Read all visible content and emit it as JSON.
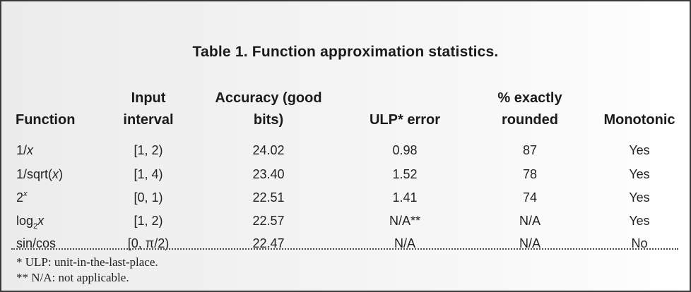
{
  "table": {
    "title": "Table 1. Function approximation statistics.",
    "headers": {
      "function": "Function",
      "interval_top": "Input",
      "interval_bottom": "interval",
      "accuracy_top": "Accuracy (good",
      "accuracy_bottom": "bits)",
      "ulp": "ULP* error",
      "exact_top": "% exactly",
      "exact_bottom": "rounded",
      "monotonic": "Monotonic"
    },
    "rows": [
      {
        "fn_base": "1/",
        "fn_var": "x",
        "interval": "[1, 2)",
        "accuracy": "24.02",
        "ulp": "0.98",
        "exact": "87",
        "monotonic": "Yes"
      },
      {
        "fn_base": "1/sqrt(",
        "fn_var": "x",
        "fn_tail": ")",
        "interval": "[1, 4)",
        "accuracy": "23.40",
        "ulp": "1.52",
        "exact": "78",
        "monotonic": "Yes"
      },
      {
        "fn_base": "2",
        "fn_sup": "x",
        "interval": "[0, 1)",
        "accuracy": "22.51",
        "ulp": "1.41",
        "exact": "74",
        "monotonic": "Yes"
      },
      {
        "fn_base": "log",
        "fn_sub": "2",
        "fn_var": "x",
        "interval": "[1, 2)",
        "accuracy": "22.57",
        "ulp": "N/A**",
        "exact": "N/A",
        "monotonic": "Yes"
      },
      {
        "fn_base": "sin/cos",
        "interval": "[0, π/2)",
        "accuracy": "22.47",
        "ulp": "N/A",
        "exact": "N/A",
        "monotonic": "No"
      }
    ],
    "footnotes": [
      "* ULP: unit-in-the-last-place.",
      "** N/A: not applicable."
    ]
  }
}
